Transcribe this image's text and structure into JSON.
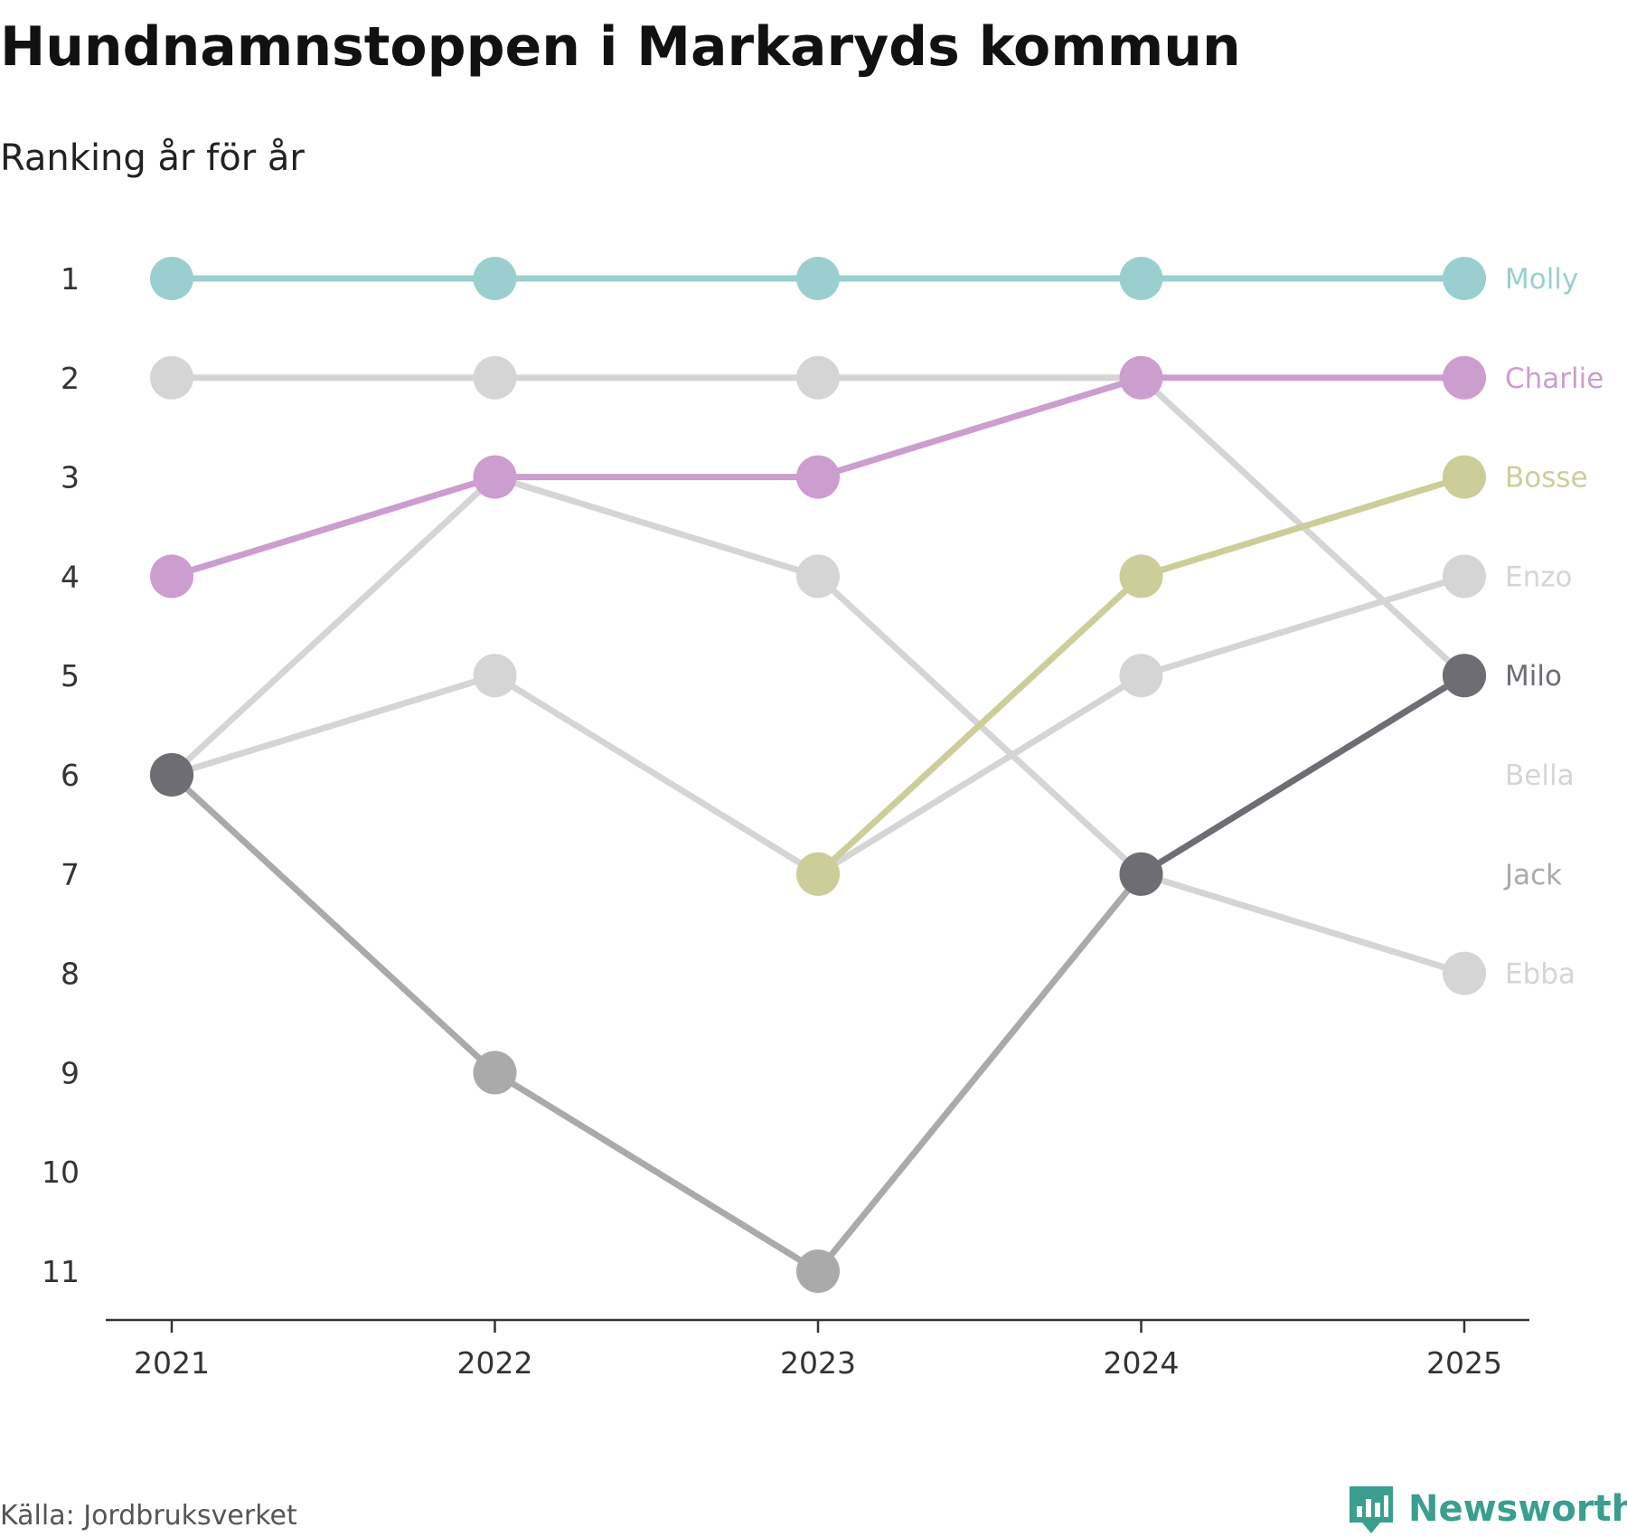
{
  "header": {
    "title": "Hundnamnstoppen i Markaryds kommun",
    "subtitle": "Ranking år för år"
  },
  "footer": {
    "source": "Källa: Jordbruksverket",
    "brand": "Newsworthy",
    "brand_icon": "bar-chart-speech-bubble-icon",
    "brand_color": "#3a9e90"
  },
  "colors": {
    "Molly": "#9bcfcf",
    "Charlie": "#cc9dcf",
    "Bosse": "#cdcd9a",
    "Milo": "#6e6d74",
    "Jack": "#aaaaaa",
    "Enzo": "#d5d5d5",
    "Bella": "#d5d5d5",
    "Ebba": "#d5d5d5",
    "axis": "#333333"
  },
  "chart_data": {
    "type": "line",
    "x": [
      2021,
      2022,
      2023,
      2024,
      2025
    ],
    "y_ticks": [
      1,
      2,
      3,
      4,
      5,
      6,
      7,
      8,
      9,
      10,
      11
    ],
    "ylim": [
      1,
      11
    ],
    "y_inverted": true,
    "legend": "direct labels at right",
    "grid": false,
    "series": [
      {
        "name": "Bella",
        "values": [
          2,
          2,
          2,
          2,
          5
        ]
      },
      {
        "name": "Ebba",
        "values": [
          6,
          3,
          4,
          7,
          8
        ]
      },
      {
        "name": "Enzo",
        "values": [
          6,
          5,
          7,
          5,
          4
        ]
      },
      {
        "name": "Jack",
        "values": [
          6,
          9,
          11,
          7,
          5
        ]
      },
      {
        "name": "Milo",
        "values": [
          6,
          null,
          null,
          7,
          5
        ]
      },
      {
        "name": "Bosse",
        "values": [
          null,
          null,
          7,
          4,
          3
        ]
      },
      {
        "name": "Charlie",
        "values": [
          4,
          3,
          3,
          2,
          2
        ]
      },
      {
        "name": "Molly",
        "values": [
          1,
          1,
          1,
          1,
          1
        ]
      }
    ],
    "end_labels": [
      {
        "name": "Molly",
        "rank": 1
      },
      {
        "name": "Charlie",
        "rank": 2
      },
      {
        "name": "Bosse",
        "rank": 3
      },
      {
        "name": "Enzo",
        "rank": 4
      },
      {
        "name": "Milo",
        "rank": 5
      },
      {
        "name": "Bella",
        "rank": 6
      },
      {
        "name": "Jack",
        "rank": 7
      },
      {
        "name": "Ebba",
        "rank": 8
      }
    ]
  }
}
